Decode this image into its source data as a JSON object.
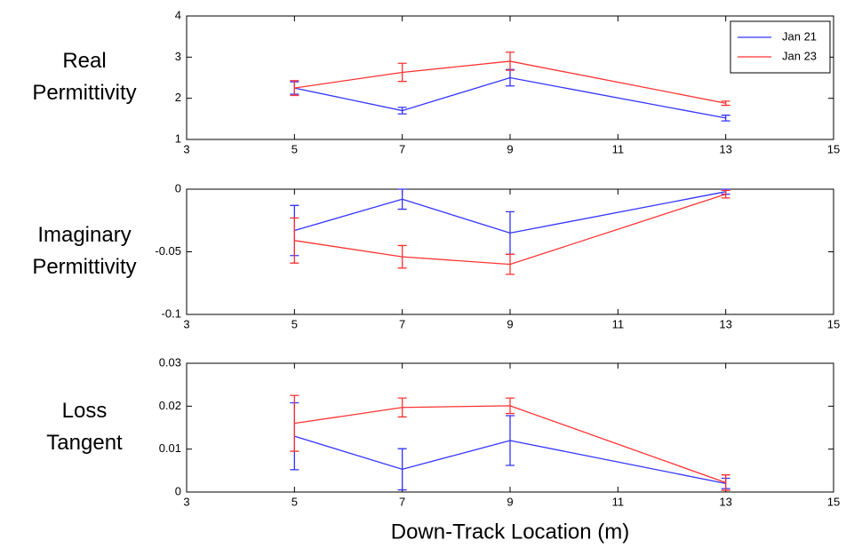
{
  "chart_data": [
    {
      "type": "line",
      "ylabel": [
        "Real",
        "Permittivity"
      ],
      "x": [
        5,
        7,
        9,
        13
      ],
      "xlim": [
        3,
        15
      ],
      "xticks": [
        3,
        5,
        7,
        9,
        11,
        13,
        15
      ],
      "ylim": [
        1,
        4
      ],
      "yticks": [
        1,
        2,
        3,
        4
      ],
      "legend": "upper right",
      "series": [
        {
          "name": "Jan 21",
          "color": "#3333ff",
          "values": [
            2.25,
            1.7,
            2.5,
            1.52
          ],
          "errors": [
            0.15,
            0.08,
            0.2,
            0.07
          ]
        },
        {
          "name": "Jan 23",
          "color": "#ff3333",
          "values": [
            2.25,
            2.63,
            2.9,
            1.88
          ],
          "errors": [
            0.18,
            0.22,
            0.22,
            0.05
          ]
        }
      ]
    },
    {
      "type": "line",
      "ylabel": [
        "Imaginary",
        "Permittivity"
      ],
      "x": [
        5,
        7,
        9,
        13
      ],
      "xlim": [
        3,
        15
      ],
      "xticks": [
        3,
        5,
        7,
        9,
        11,
        13,
        15
      ],
      "ylim": [
        -0.1,
        0
      ],
      "yticks": [
        -0.1,
        -0.05,
        0
      ],
      "series": [
        {
          "color": "#3333ff",
          "values": [
            -0.033,
            -0.008,
            -0.035,
            -0.002
          ],
          "errors": [
            0.02,
            0.008,
            0.017,
            0.002
          ]
        },
        {
          "color": "#ff3333",
          "values": [
            -0.041,
            -0.054,
            -0.06,
            -0.004
          ],
          "errors": [
            0.018,
            0.009,
            0.008,
            0.003
          ]
        }
      ]
    },
    {
      "type": "line",
      "ylabel": [
        "Loss",
        "Tangent"
      ],
      "xlabel": "Down-Track Location (m)",
      "x": [
        5,
        7,
        9,
        13
      ],
      "xlim": [
        3,
        15
      ],
      "xticks": [
        3,
        5,
        7,
        9,
        11,
        13,
        15
      ],
      "ylim": [
        0,
        0.03
      ],
      "yticks": [
        0,
        0.01,
        0.02,
        0.03
      ],
      "series": [
        {
          "color": "#3333ff",
          "values": [
            0.013,
            0.0053,
            0.012,
            0.002
          ],
          "errors": [
            0.0078,
            0.0048,
            0.0058,
            0.0012
          ]
        },
        {
          "color": "#ff3333",
          "values": [
            0.016,
            0.0197,
            0.0201,
            0.0022
          ],
          "errors": [
            0.0065,
            0.0022,
            0.0018,
            0.0018
          ]
        }
      ]
    }
  ]
}
